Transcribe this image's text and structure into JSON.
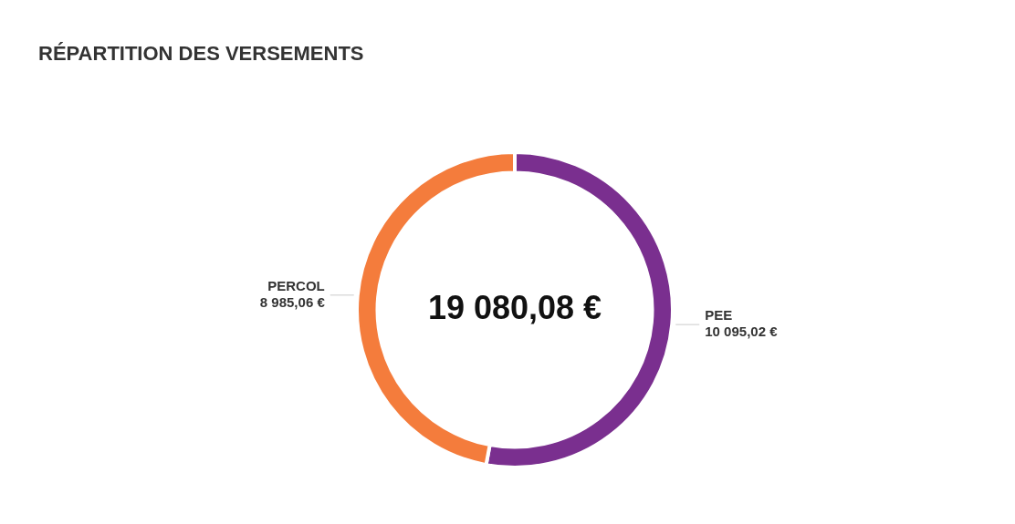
{
  "chart_data": {
    "type": "donut",
    "title": "RÉPARTITION DES VERSEMENTS",
    "categories": [
      "PEE",
      "PERCOL"
    ],
    "values": [
      10095.02,
      8985.06
    ],
    "colors": [
      "#7a2f8f",
      "#f47c3c"
    ],
    "value_labels": [
      "10 095,02 €",
      "8 985,06 €"
    ],
    "annotations": [
      "19 080,08 €"
    ]
  }
}
